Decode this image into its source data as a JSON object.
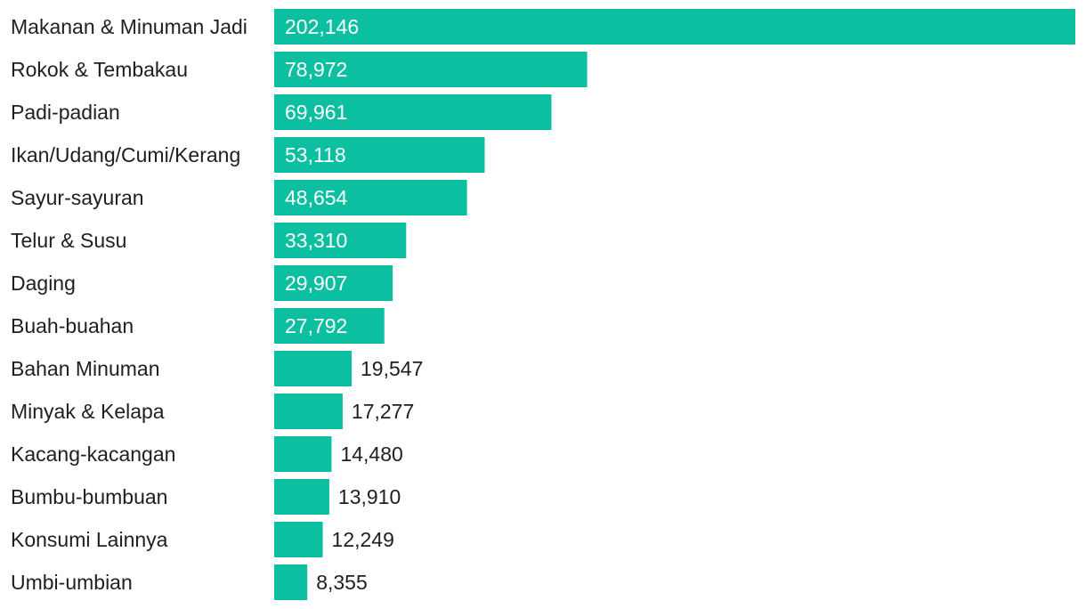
{
  "chart_data": {
    "type": "bar",
    "orientation": "horizontal",
    "categories": [
      "Makanan & Minuman Jadi",
      "Rokok & Tembakau",
      "Padi-padian",
      "Ikan/Udang/Cumi/Kerang",
      "Sayur-sayuran",
      "Telur & Susu",
      "Daging",
      "Buah-buahan",
      "Bahan Minuman",
      "Minyak & Kelapa",
      "Kacang-kacangan",
      "Bumbu-bumbuan",
      "Konsumi Lainnya",
      "Umbi-umbian"
    ],
    "values": [
      202146,
      78972,
      69961,
      53118,
      48654,
      33310,
      29907,
      27792,
      19547,
      17277,
      14480,
      13910,
      12249,
      8355
    ],
    "value_labels": [
      "202,146",
      "78,972",
      "69,961",
      "53,118",
      "48,654",
      "33,310",
      "29,907",
      "27,792",
      "19,547",
      "17,277",
      "14,480",
      "13,910",
      "12,249",
      "8,355"
    ],
    "title": "",
    "xlabel": "",
    "ylabel": "",
    "xlim": [
      0,
      202146
    ],
    "grid": false,
    "legend": "none",
    "bar_color": "#0bbfa0",
    "label_inside_color": "#ffffff",
    "label_outside_color": "#1f1f1f"
  }
}
